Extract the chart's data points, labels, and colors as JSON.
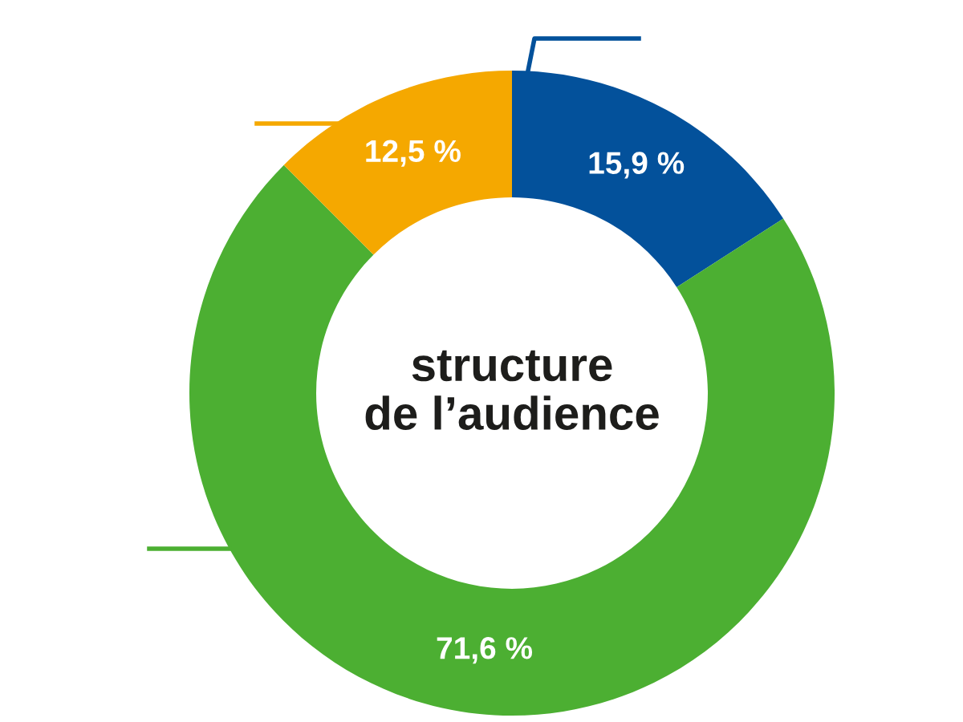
{
  "chart_data": {
    "type": "donut",
    "title": "structure\nde l’audience",
    "categories": [
      null,
      null,
      null
    ],
    "values": [
      15.9,
      71.6,
      12.5
    ],
    "colors": [
      "#03519b",
      "#4caf32",
      "#f5a800"
    ],
    "value_labels": [
      "15,9 %",
      "71,6 %",
      "12,5 %"
    ]
  }
}
